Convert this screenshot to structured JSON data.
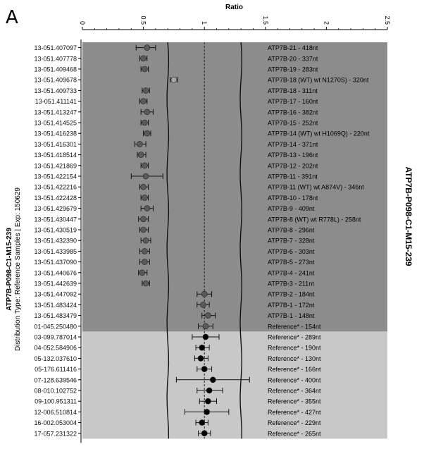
{
  "panel_letter": "A",
  "left_title_line1": "ATP7B-P098-C1-M15-239",
  "left_title_line2": "Distribution Type: Reference Samples | Exp: 150629",
  "right_title": "ATP7B-P098-C1-M15-239",
  "colors": {
    "dark_region": "#8c8c8c",
    "light_region": "#c8c8c8",
    "marker_dark": "#5a5a5a",
    "marker_light": "#000000",
    "marker_outlier": "#a8a8a8"
  },
  "chart_data": {
    "type": "scatter",
    "title": "",
    "xlabel": "Ratio",
    "ylabel": "",
    "xlim": [
      0,
      2.5
    ],
    "xticks": [
      "0",
      "0.5",
      "1",
      "1.5",
      "2",
      "2.5"
    ],
    "xtick_values": [
      0,
      0.5,
      1,
      1.5,
      2,
      2.5
    ],
    "reference_line": 1.0,
    "band_curves": {
      "lower": 0.7,
      "upper": 1.3
    },
    "dark_rows": 27,
    "rows": [
      {
        "sample": "13-051.407097",
        "probe": "ATP7B-21 - 418nt",
        "ratio": 0.53,
        "lo": 0.44,
        "hi": 0.6
      },
      {
        "sample": "13-051.407778",
        "probe": "ATP7B-20 - 337nt",
        "ratio": 0.5,
        "lo": 0.47,
        "hi": 0.53
      },
      {
        "sample": "13-051.409468",
        "probe": "ATP7B-19 - 283nt",
        "ratio": 0.51,
        "lo": 0.48,
        "hi": 0.54
      },
      {
        "sample": "13-051.409678",
        "probe": "ATP7B-18 (WT) wt N1270S) - 320nt",
        "ratio": 0.75,
        "lo": 0.72,
        "hi": 0.78,
        "outlier": true
      },
      {
        "sample": "13-051.409733",
        "probe": "ATP7B-18 - 311nt",
        "ratio": 0.52,
        "lo": 0.49,
        "hi": 0.55
      },
      {
        "sample": "13-051.411141",
        "probe": "ATP7B-17 - 160nt",
        "ratio": 0.5,
        "lo": 0.47,
        "hi": 0.53
      },
      {
        "sample": "13-051.413247",
        "probe": "ATP7B-16 - 382nt",
        "ratio": 0.53,
        "lo": 0.48,
        "hi": 0.58
      },
      {
        "sample": "13-051.414525",
        "probe": "ATP7B-15 - 252nt",
        "ratio": 0.51,
        "lo": 0.48,
        "hi": 0.54
      },
      {
        "sample": "13-051.416238",
        "probe": "ATP7B-14 (WT) wt H1069Q) - 220nt",
        "ratio": 0.53,
        "lo": 0.5,
        "hi": 0.56
      },
      {
        "sample": "13-051.416301",
        "probe": "ATP7B-14 - 371nt",
        "ratio": 0.47,
        "lo": 0.43,
        "hi": 0.52
      },
      {
        "sample": "13-051.418514",
        "probe": "ATP7B-13 - 196nt",
        "ratio": 0.48,
        "lo": 0.45,
        "hi": 0.52
      },
      {
        "sample": "13-051.421869",
        "probe": "ATP7B-12 - 202nt",
        "ratio": 0.51,
        "lo": 0.48,
        "hi": 0.54
      },
      {
        "sample": "13-051.422154",
        "probe": "ATP7B-11 - 391nt",
        "ratio": 0.52,
        "lo": 0.4,
        "hi": 0.66
      },
      {
        "sample": "13-051.422216",
        "probe": "ATP7B-11 (WT) wt A874V) - 346nt",
        "ratio": 0.5,
        "lo": 0.47,
        "hi": 0.54
      },
      {
        "sample": "13-051.422428",
        "probe": "ATP7B-10 - 178nt",
        "ratio": 0.51,
        "lo": 0.48,
        "hi": 0.54
      },
      {
        "sample": "13-051.429679",
        "probe": "ATP7B-9 - 409nt",
        "ratio": 0.53,
        "lo": 0.48,
        "hi": 0.58
      },
      {
        "sample": "13-051.430447",
        "probe": "ATP7B-8 (WT) wt R778L) - 258nt",
        "ratio": 0.5,
        "lo": 0.46,
        "hi": 0.54
      },
      {
        "sample": "13-051.430519",
        "probe": "ATP7B-8 - 296nt",
        "ratio": 0.5,
        "lo": 0.47,
        "hi": 0.54
      },
      {
        "sample": "13-051.432390",
        "probe": "ATP7B-7 - 328nt",
        "ratio": 0.52,
        "lo": 0.48,
        "hi": 0.56
      },
      {
        "sample": "13-051.433985",
        "probe": "ATP7B-6 - 303nt",
        "ratio": 0.51,
        "lo": 0.47,
        "hi": 0.55
      },
      {
        "sample": "13-051.437090",
        "probe": "ATP7B-5 - 273nt",
        "ratio": 0.51,
        "lo": 0.47,
        "hi": 0.55
      },
      {
        "sample": "13-051.440676",
        "probe": "ATP7B-4 - 241nt",
        "ratio": 0.49,
        "lo": 0.46,
        "hi": 0.53
      },
      {
        "sample": "13-051.442639",
        "probe": "ATP7B-3 - 211nt",
        "ratio": 0.52,
        "lo": 0.49,
        "hi": 0.55
      },
      {
        "sample": "13-051.447092",
        "probe": "ATP7B-2 - 184nt",
        "ratio": 1.0,
        "lo": 0.94,
        "hi": 1.06
      },
      {
        "sample": "13-051.483424",
        "probe": "ATP7B-1 - 172nt",
        "ratio": 0.99,
        "lo": 0.94,
        "hi": 1.04
      },
      {
        "sample": "13-051.483479",
        "probe": "ATP7B-1 - 148nt",
        "ratio": 1.03,
        "lo": 0.98,
        "hi": 1.09
      },
      {
        "sample": "01-045.250480",
        "probe": "Reference* - 154nt",
        "ratio": 1.01,
        "lo": 0.95,
        "hi": 1.07
      },
      {
        "sample": "03-099.787014",
        "probe": "Reference* - 289nt",
        "ratio": 1.01,
        "lo": 0.9,
        "hi": 1.12
      },
      {
        "sample": "04-052.584906",
        "probe": "Reference* - 190nt",
        "ratio": 0.98,
        "lo": 0.93,
        "hi": 1.04
      },
      {
        "sample": "05-132.037610",
        "probe": "Reference* - 130nt",
        "ratio": 0.97,
        "lo": 0.92,
        "hi": 1.03
      },
      {
        "sample": "05-176.611416",
        "probe": "Reference* - 166nt",
        "ratio": 1.0,
        "lo": 0.94,
        "hi": 1.06
      },
      {
        "sample": "07-128.639546",
        "probe": "Reference* - 400nt",
        "ratio": 1.07,
        "lo": 0.77,
        "hi": 1.37
      },
      {
        "sample": "08-010.102752",
        "probe": "Reference* - 364nt",
        "ratio": 1.04,
        "lo": 0.94,
        "hi": 1.15
      },
      {
        "sample": "09-100.951311",
        "probe": "Reference* - 355nt",
        "ratio": 1.03,
        "lo": 0.96,
        "hi": 1.1
      },
      {
        "sample": "12-006.510814",
        "probe": "Reference* - 427nt",
        "ratio": 1.02,
        "lo": 0.84,
        "hi": 1.2
      },
      {
        "sample": "16-002.053004",
        "probe": "Reference* - 229nt",
        "ratio": 0.98,
        "lo": 0.93,
        "hi": 1.03
      },
      {
        "sample": "17-057.231322",
        "probe": "Reference* - 265nt",
        "ratio": 1.0,
        "lo": 0.95,
        "hi": 1.05
      }
    ]
  }
}
